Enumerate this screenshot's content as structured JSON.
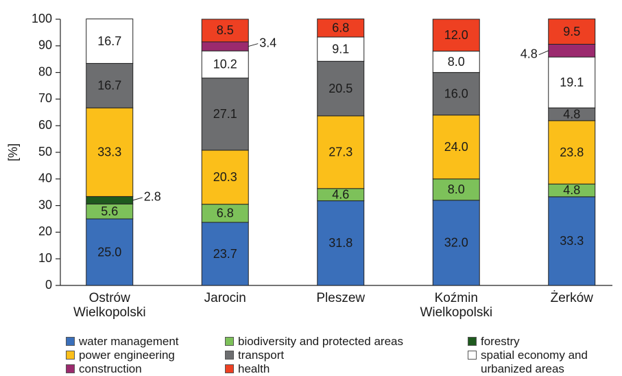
{
  "chart_data": {
    "type": "stacked-bar",
    "ylabel": "[%]",
    "categories": [
      "Ostrów Wielkopolski",
      "Jarocin",
      "Pleszew",
      "Koźmin Wielkopolski",
      "Żerków"
    ],
    "ylim": [
      0,
      100
    ],
    "yticks": [
      0,
      10,
      20,
      30,
      40,
      50,
      60,
      70,
      80,
      90,
      100
    ],
    "series": [
      {
        "name": "water management",
        "color": "#3a6fba",
        "values": [
          25,
          23.7,
          31.8,
          32,
          33.3
        ],
        "value_labels": [
          "25.0",
          "23.7",
          "31.8",
          "32.0",
          "33.3"
        ]
      },
      {
        "name": "biodiversity and protected areas",
        "color": "#7dc15a",
        "values": [
          5.6,
          6.8,
          4.6,
          8,
          4.8
        ],
        "value_labels": [
          "5.6",
          "6.8",
          "4.6",
          "8.0",
          "4.8"
        ]
      },
      {
        "name": "forestry",
        "color": "#1e5a1e",
        "values": [
          2.8,
          null,
          null,
          null,
          null
        ],
        "value_labels": [
          "2.8",
          null,
          null,
          null,
          null
        ]
      },
      {
        "name": "power engineering",
        "color": "#fbbf1a",
        "values": [
          33.3,
          20.3,
          27.3,
          24,
          23.8
        ],
        "value_labels": [
          "33.3",
          "20.3",
          "27.3",
          "24.0",
          "23.8"
        ]
      },
      {
        "name": "transport",
        "color": "#6d6e70",
        "values": [
          16.7,
          27.1,
          20.5,
          16,
          4.8
        ],
        "value_labels": [
          "16.7",
          "27.1",
          "20.5",
          "16.0",
          "4.8"
        ]
      },
      {
        "name": "spatial economy and urbanized areas",
        "color": "#ffffff",
        "values": [
          16.7,
          10.2,
          9.1,
          8,
          19.1
        ],
        "value_labels": [
          "16.7",
          "10.2",
          "9.1",
          "8.0",
          "19.1"
        ]
      },
      {
        "name": "construction",
        "color": "#9b2a6e",
        "values": [
          null,
          3.4,
          null,
          null,
          4.8
        ],
        "value_labels": [
          null,
          "3.4",
          null,
          null,
          "4.8"
        ]
      },
      {
        "name": "health",
        "color": "#ee4022",
        "values": [
          null,
          8.5,
          6.8,
          12,
          9.5
        ],
        "value_labels": [
          null,
          "8.5",
          "6.8",
          "12.0",
          "9.5"
        ]
      }
    ]
  }
}
